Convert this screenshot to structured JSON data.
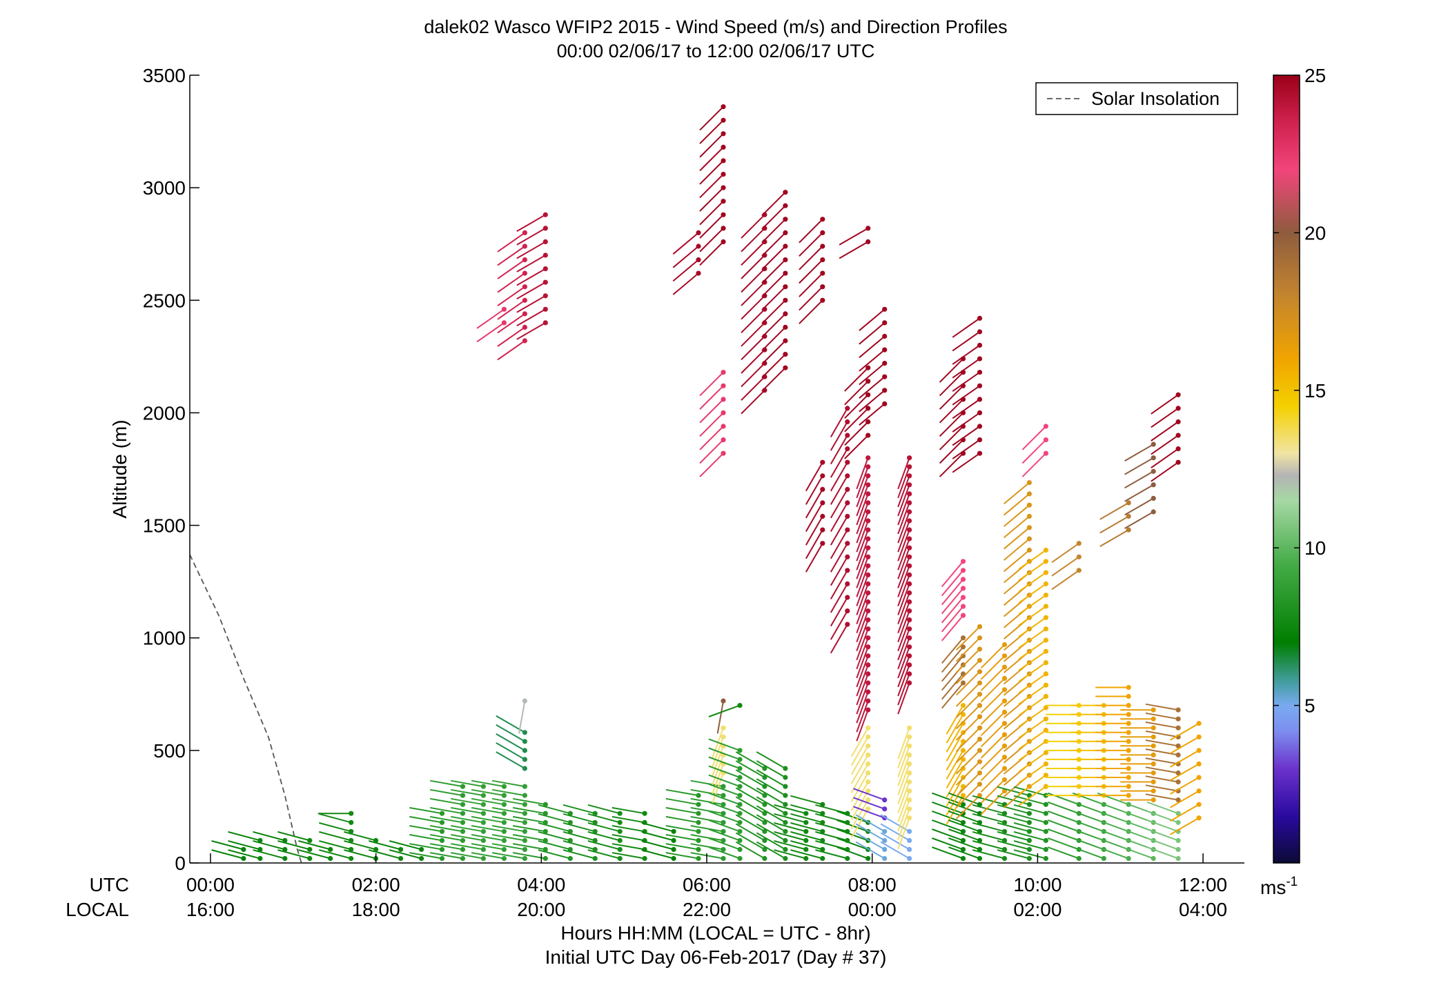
{
  "chart_data": {
    "type": "scatter",
    "title": "dalek02 Wasco WFIP2 2015 - Wind Speed (m/s) and Direction Profiles",
    "subtitle": "00:00 02/06/17 to 12:00 02/06/17  UTC",
    "ylabel": "Altitude (m)",
    "xlabel": "Hours HH:MM  (LOCAL = UTC - 8hr)",
    "xlabel2": "Initial UTC Day 06-Feb-2017 (Day # 37)",
    "row_labels": {
      "utc": "UTC",
      "local": "LOCAL"
    },
    "xlim": [
      -0.25,
      12.5
    ],
    "ylim": [
      0,
      3500
    ],
    "x_ticks": [
      0,
      2,
      4,
      6,
      8,
      10,
      12
    ],
    "x_tick_labels_utc": [
      "00:00",
      "02:00",
      "04:00",
      "06:00",
      "08:00",
      "10:00",
      "12:00"
    ],
    "x_tick_labels_local": [
      "16:00",
      "18:00",
      "20:00",
      "22:00",
      "00:00",
      "02:00",
      "04:00"
    ],
    "y_ticks": [
      0,
      500,
      1000,
      1500,
      2000,
      2500,
      3000,
      3500
    ],
    "y_tick_labels": [
      "0",
      "500",
      "1000",
      "1500",
      "2000",
      "2500",
      "3000",
      "3500"
    ],
    "colorbar": {
      "range": [
        0,
        25
      ],
      "ticks": [
        5,
        10,
        15,
        20,
        25
      ],
      "tick_labels": [
        "5",
        "10",
        "15",
        "20",
        "25"
      ],
      "unit": "ms",
      "unit_exponent": "-1",
      "stops": [
        {
          "v": 0,
          "c": "#0b0a35"
        },
        {
          "v": 1.5,
          "c": "#2a0aa0"
        },
        {
          "v": 3,
          "c": "#6b33cc"
        },
        {
          "v": 4.2,
          "c": "#7d8ff0"
        },
        {
          "v": 5,
          "c": "#79aaf0"
        },
        {
          "v": 5.8,
          "c": "#409c9a"
        },
        {
          "v": 7,
          "c": "#007e00"
        },
        {
          "v": 9.5,
          "c": "#45ac48"
        },
        {
          "v": 11.5,
          "c": "#a6d8a4"
        },
        {
          "v": 12.3,
          "c": "#b4b4b4"
        },
        {
          "v": 13,
          "c": "#f1e5a4"
        },
        {
          "v": 14.5,
          "c": "#f4d000"
        },
        {
          "v": 16,
          "c": "#f0a400"
        },
        {
          "v": 18,
          "c": "#c4852e"
        },
        {
          "v": 20,
          "c": "#8e5c3e"
        },
        {
          "v": 22,
          "c": "#f2457b"
        },
        {
          "v": 23.5,
          "c": "#d0224f"
        },
        {
          "v": 25,
          "c": "#9a0018"
        }
      ]
    },
    "legend": {
      "entries": [
        "Solar Insolation"
      ],
      "position": "top-right"
    },
    "solar_insolation": {
      "x": [
        -0.25,
        0.1,
        0.4,
        0.7,
        0.9,
        1.05,
        1.1
      ],
      "y": [
        1370,
        1100,
        820,
        560,
        300,
        60,
        0
      ]
    },
    "profiles": [
      {
        "t": 0.4,
        "segments": [
          {
            "h0": 20,
            "h1": 60,
            "s": 7.2,
            "d": 285,
            "dh": 40
          }
        ]
      },
      {
        "t": 0.6,
        "segments": [
          {
            "h0": 20,
            "h1": 100,
            "s": 7.4,
            "d": 285,
            "dh": 40
          }
        ]
      },
      {
        "t": 0.9,
        "segments": [
          {
            "h0": 20,
            "h1": 100,
            "s": 7.4,
            "d": 285,
            "dh": 40
          }
        ]
      },
      {
        "t": 1.2,
        "segments": [
          {
            "h0": 20,
            "h1": 100,
            "s": 7.5,
            "d": 285,
            "dh": 40
          }
        ]
      },
      {
        "t": 1.45,
        "segments": [
          {
            "h0": 20,
            "h1": 80,
            "s": 7.4,
            "d": 285,
            "dh": 40
          }
        ]
      },
      {
        "t": 1.7,
        "segments": [
          {
            "h0": 20,
            "h1": 180,
            "s": 7.6,
            "d": 285,
            "dh": 40
          },
          {
            "h0": 220,
            "h1": 220,
            "s": 7.6,
            "d": 270,
            "dh": 40
          }
        ]
      },
      {
        "t": 2.0,
        "segments": [
          {
            "h0": 20,
            "h1": 100,
            "s": 7.5,
            "d": 285,
            "dh": 40
          }
        ]
      },
      {
        "t": 2.3,
        "segments": [
          {
            "h0": 20,
            "h1": 80,
            "s": 7.5,
            "d": 285,
            "dh": 40
          }
        ]
      },
      {
        "t": 2.55,
        "segments": [
          {
            "h0": 20,
            "h1": 60,
            "s": 7.4,
            "d": 285,
            "dh": 40
          }
        ]
      },
      {
        "t": 2.8,
        "segments": [
          {
            "h0": 20,
            "h1": 220,
            "s": 8.4,
            "d": 280,
            "dh": 40
          }
        ]
      },
      {
        "t": 3.05,
        "segments": [
          {
            "h0": 20,
            "h1": 360,
            "s": 8.6,
            "d": 280,
            "dh": 40
          }
        ]
      },
      {
        "t": 3.3,
        "segments": [
          {
            "h0": 20,
            "h1": 360,
            "s": 8.8,
            "d": 280,
            "dh": 40
          }
        ]
      },
      {
        "t": 3.55,
        "segments": [
          {
            "h0": 20,
            "h1": 360,
            "s": 8.8,
            "d": 280,
            "dh": 40
          },
          {
            "h0": 2400,
            "h1": 2460,
            "s": 22.5,
            "d": 235,
            "dh": 60
          }
        ]
      },
      {
        "t": 3.8,
        "segments": [
          {
            "h0": 20,
            "h1": 360,
            "s": 8.8,
            "d": 280,
            "dh": 40
          },
          {
            "h0": 420,
            "h1": 600,
            "s": 6.4,
            "d": 300,
            "dh": 40
          },
          {
            "h0": 720,
            "h1": 720,
            "s": 12.2,
            "d": 190,
            "dh": 40
          },
          {
            "h0": 2320,
            "h1": 2820,
            "s": 23.5,
            "d": 235,
            "dh": 60
          }
        ]
      },
      {
        "t": 4.05,
        "segments": [
          {
            "h0": 20,
            "h1": 290,
            "s": 8.4,
            "d": 280,
            "dh": 40
          },
          {
            "h0": 2400,
            "h1": 2900,
            "s": 24.2,
            "d": 240,
            "dh": 60
          }
        ]
      },
      {
        "t": 4.35,
        "segments": [
          {
            "h0": 20,
            "h1": 220,
            "s": 8.2,
            "d": 285,
            "dh": 40
          }
        ]
      },
      {
        "t": 4.65,
        "segments": [
          {
            "h0": 20,
            "h1": 220,
            "s": 8.0,
            "d": 285,
            "dh": 40
          }
        ]
      },
      {
        "t": 4.95,
        "segments": [
          {
            "h0": 20,
            "h1": 220,
            "s": 7.8,
            "d": 285,
            "dh": 40
          }
        ]
      },
      {
        "t": 5.25,
        "segments": [
          {
            "h0": 20,
            "h1": 220,
            "s": 7.6,
            "d": 280,
            "dh": 40
          }
        ]
      },
      {
        "t": 5.6,
        "segments": [
          {
            "h0": 20,
            "h1": 160,
            "s": 7.2,
            "d": 285,
            "dh": 40
          }
        ]
      },
      {
        "t": 5.9,
        "segments": [
          {
            "h0": 20,
            "h1": 300,
            "s": 8.4,
            "d": 280,
            "dh": 40
          },
          {
            "h0": 2620,
            "h1": 2820,
            "s": 24.6,
            "d": 230,
            "dh": 60
          }
        ]
      },
      {
        "t": 6.2,
        "segments": [
          {
            "h0": 20,
            "h1": 360,
            "s": 8.6,
            "d": 280,
            "dh": 40
          },
          {
            "h0": 400,
            "h1": 600,
            "s": 13.5,
            "d": 200,
            "dh": 40
          },
          {
            "h0": 720,
            "h1": 720,
            "s": 20.0,
            "d": 190,
            "dh": 40
          },
          {
            "h0": 1820,
            "h1": 2180,
            "s": 22.5,
            "d": 225,
            "dh": 60
          },
          {
            "h0": 2760,
            "h1": 3400,
            "s": 24.8,
            "d": 225,
            "dh": 60
          }
        ]
      },
      {
        "t": 6.4,
        "segments": [
          {
            "h0": 20,
            "h1": 500,
            "s": 8.6,
            "d": 290,
            "dh": 40
          },
          {
            "h0": 700,
            "h1": 700,
            "s": 7.6,
            "d": 250,
            "dh": 40
          }
        ]
      },
      {
        "t": 6.7,
        "segments": [
          {
            "h0": 20,
            "h1": 420,
            "s": 8.2,
            "d": 300,
            "dh": 40
          },
          {
            "h0": 2100,
            "h1": 2900,
            "s": 24.6,
            "d": 225,
            "dh": 60
          }
        ]
      },
      {
        "t": 6.95,
        "segments": [
          {
            "h0": 20,
            "h1": 420,
            "s": 8.0,
            "d": 300,
            "dh": 40
          },
          {
            "h0": 2200,
            "h1": 2980,
            "s": 24.8,
            "d": 225,
            "dh": 60
          }
        ]
      },
      {
        "t": 7.2,
        "segments": [
          {
            "h0": 20,
            "h1": 220,
            "s": 7.6,
            "d": 285,
            "dh": 40
          }
        ]
      },
      {
        "t": 7.4,
        "segments": [
          {
            "h0": 20,
            "h1": 280,
            "s": 7.6,
            "d": 285,
            "dh": 40
          },
          {
            "h0": 1420,
            "h1": 1820,
            "s": 24.6,
            "d": 210,
            "dh": 60
          },
          {
            "h0": 2500,
            "h1": 2900,
            "s": 24.8,
            "d": 225,
            "dh": 60
          }
        ]
      },
      {
        "t": 7.7,
        "segments": [
          {
            "h0": 20,
            "h1": 240,
            "s": 7.6,
            "d": 285,
            "dh": 40
          },
          {
            "h0": 1060,
            "h1": 2040,
            "s": 24.4,
            "d": 210,
            "dh": 60
          }
        ]
      },
      {
        "t": 7.95,
        "segments": [
          {
            "h0": 20,
            "h1": 200,
            "s": 7.4,
            "d": 290,
            "dh": 40
          },
          {
            "h0": 240,
            "h1": 600,
            "s": 13.5,
            "d": 210,
            "dh": 40
          },
          {
            "h0": 680,
            "h1": 1800,
            "s": 24.0,
            "d": 200,
            "dh": 40
          },
          {
            "h0": 1900,
            "h1": 2200,
            "s": 24.8,
            "d": 225,
            "dh": 60
          },
          {
            "h0": 2760,
            "h1": 2830,
            "s": 24.8,
            "d": 240,
            "dh": 60
          }
        ]
      },
      {
        "t": 8.15,
        "segments": [
          {
            "h0": 20,
            "h1": 160,
            "s": 5.2,
            "d": 300,
            "dh": 40
          },
          {
            "h0": 200,
            "h1": 300,
            "s": 3.0,
            "d": 290,
            "dh": 40
          },
          {
            "h0": 2040,
            "h1": 2460,
            "s": 24.8,
            "d": 230,
            "dh": 60
          }
        ]
      },
      {
        "t": 8.45,
        "segments": [
          {
            "h0": 20,
            "h1": 160,
            "s": 5.0,
            "d": 300,
            "dh": 40
          },
          {
            "h0": 200,
            "h1": 600,
            "s": 13.5,
            "d": 200,
            "dh": 40
          },
          {
            "h0": 800,
            "h1": 1800,
            "s": 24.2,
            "d": 200,
            "dh": 40
          }
        ]
      },
      {
        "t": 9.1,
        "segments": [
          {
            "h0": 20,
            "h1": 260,
            "s": 7.4,
            "d": 290,
            "dh": 40
          },
          {
            "h0": 300,
            "h1": 700,
            "s": 15.5,
            "d": 210,
            "dh": 40
          },
          {
            "h0": 800,
            "h1": 1000,
            "s": 19.0,
            "d": 220,
            "dh": 40
          },
          {
            "h0": 1100,
            "h1": 1340,
            "s": 22.0,
            "d": 220,
            "dh": 40
          },
          {
            "h0": 1820,
            "h1": 2280,
            "s": 24.8,
            "d": 225,
            "dh": 60
          }
        ]
      },
      {
        "t": 9.3,
        "segments": [
          {
            "h0": 20,
            "h1": 260,
            "s": 7.4,
            "d": 290,
            "dh": 40
          },
          {
            "h0": 300,
            "h1": 1050,
            "s": 17.0,
            "d": 225,
            "dh": 50
          },
          {
            "h0": 1820,
            "h1": 2460,
            "s": 24.8,
            "d": 235,
            "dh": 60
          }
        ]
      },
      {
        "t": 9.6,
        "segments": [
          {
            "h0": 20,
            "h1": 280,
            "s": 7.8,
            "d": 285,
            "dh": 40
          },
          {
            "h0": 320,
            "h1": 1000,
            "s": 16.5,
            "d": 225,
            "dh": 50
          }
        ]
      },
      {
        "t": 9.9,
        "segments": [
          {
            "h0": 20,
            "h1": 300,
            "s": 8.0,
            "d": 285,
            "dh": 40
          },
          {
            "h0": 340,
            "h1": 1700,
            "s": 17.0,
            "d": 230,
            "dh": 50
          }
        ]
      },
      {
        "t": 10.1,
        "segments": [
          {
            "h0": 20,
            "h1": 300,
            "s": 8.2,
            "d": 285,
            "dh": 40
          },
          {
            "h0": 340,
            "h1": 1420,
            "s": 15.5,
            "d": 235,
            "dh": 50
          },
          {
            "h0": 1820,
            "h1": 1950,
            "s": 22.0,
            "d": 225,
            "dh": 60
          }
        ]
      },
      {
        "t": 10.5,
        "segments": [
          {
            "h0": 20,
            "h1": 260,
            "s": 8.6,
            "d": 290,
            "dh": 40
          },
          {
            "h0": 300,
            "h1": 700,
            "s": 14.5,
            "d": 270,
            "dh": 40
          },
          {
            "h0": 1300,
            "h1": 1420,
            "s": 18.0,
            "d": 235,
            "dh": 60
          }
        ]
      },
      {
        "t": 10.8,
        "segments": [
          {
            "h0": 20,
            "h1": 260,
            "s": 9.0,
            "d": 290,
            "dh": 40
          },
          {
            "h0": 300,
            "h1": 700,
            "s": 15.0,
            "d": 270,
            "dh": 40
          }
        ]
      },
      {
        "t": 11.1,
        "segments": [
          {
            "h0": 20,
            "h1": 260,
            "s": 9.6,
            "d": 290,
            "dh": 40
          },
          {
            "h0": 300,
            "h1": 800,
            "s": 16.0,
            "d": 270,
            "dh": 40
          },
          {
            "h0": 1480,
            "h1": 1620,
            "s": 18.5,
            "d": 240,
            "dh": 60
          }
        ]
      },
      {
        "t": 11.4,
        "segments": [
          {
            "h0": 20,
            "h1": 240,
            "s": 10.0,
            "d": 290,
            "dh": 40
          },
          {
            "h0": 280,
            "h1": 700,
            "s": 16.5,
            "d": 270,
            "dh": 40
          },
          {
            "h0": 1560,
            "h1": 1880,
            "s": 20.0,
            "d": 240,
            "dh": 60
          }
        ]
      },
      {
        "t": 11.7,
        "segments": [
          {
            "h0": 20,
            "h1": 240,
            "s": 10.6,
            "d": 290,
            "dh": 40
          },
          {
            "h0": 280,
            "h1": 700,
            "s": 19.0,
            "d": 280,
            "dh": 40
          },
          {
            "h0": 1780,
            "h1": 2080,
            "s": 24.8,
            "d": 235,
            "dh": 60
          }
        ]
      },
      {
        "t": 11.95,
        "segments": [
          {
            "h0": 200,
            "h1": 650,
            "s": 16.0,
            "d": 240,
            "dh": 60
          }
        ]
      }
    ]
  }
}
